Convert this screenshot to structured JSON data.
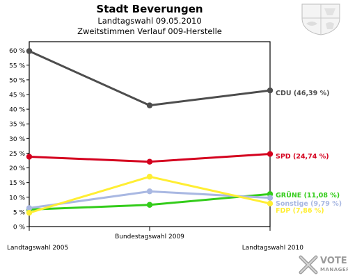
{
  "header": {
    "title": "Stadt Beverungen",
    "subtitle": "Landtagswahl 09.05.2010",
    "subtitle2": "Zweitstimmen Verlauf 009-Herstelle"
  },
  "brand": {
    "line1": "VOTE",
    "line2": "MANAGER",
    "icon": "x-ballot-icon"
  },
  "crest": {
    "icon": "coat-of-arms-icon"
  },
  "chart_data": {
    "type": "line",
    "categories": [
      "Landtagswahl 2005",
      "Bundestagswahl 2009",
      "Landtagswahl 2010"
    ],
    "ylim": [
      0,
      63
    ],
    "yticks": [
      0,
      5,
      10,
      15,
      20,
      25,
      30,
      35,
      40,
      45,
      50,
      55,
      60
    ],
    "ytick_suffix": " %",
    "grid": false,
    "series": [
      {
        "name": "CDU",
        "label": "CDU (46,39 %)",
        "color": "#4d4d4d",
        "values": [
          59.8,
          41.3,
          46.39
        ]
      },
      {
        "name": "SPD",
        "label": "SPD (24,74 %)",
        "color": "#d4001e",
        "values": [
          23.8,
          22.1,
          24.74
        ]
      },
      {
        "name": "GRÜNE",
        "label": "GRÜNE (11,08 %)",
        "color": "#33cc1a",
        "values": [
          5.8,
          7.4,
          11.08
        ]
      },
      {
        "name": "Sonstige",
        "label": "Sonstige (9,79 %)",
        "color": "#a9b8e2",
        "values": [
          6.3,
          12.0,
          9.79
        ]
      },
      {
        "name": "FDP",
        "label": "FDP (7,86 %)",
        "color": "#ffee33",
        "values": [
          4.7,
          17.0,
          7.86
        ]
      }
    ]
  }
}
